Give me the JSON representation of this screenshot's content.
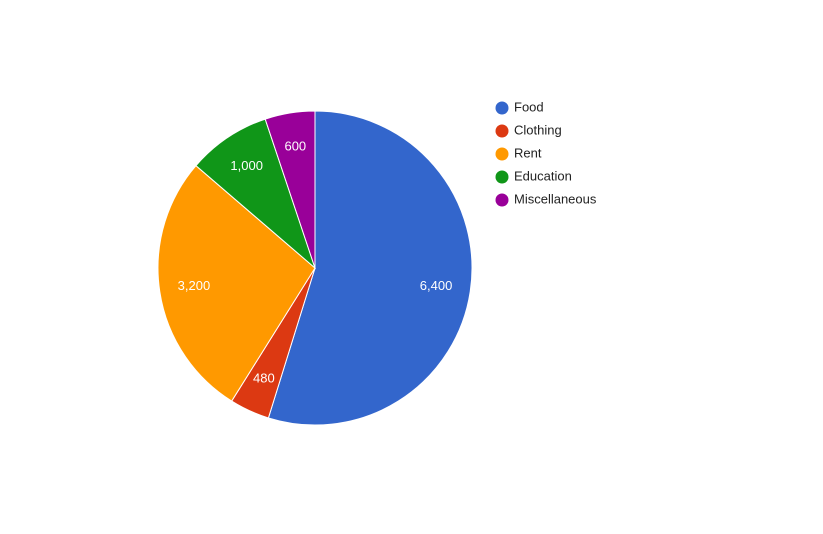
{
  "chart_data": {
    "type": "pie",
    "categories": [
      "Food",
      "Clothing",
      "Rent",
      "Education",
      "Miscellaneous"
    ],
    "values": [
      6400,
      480,
      3200,
      1000,
      600
    ],
    "value_labels": [
      "6,400",
      "480",
      "3,200",
      "1,000",
      "600"
    ],
    "colors": [
      "#3366cc",
      "#dc3912",
      "#ff9900",
      "#109618",
      "#990099"
    ],
    "legend": "right"
  }
}
